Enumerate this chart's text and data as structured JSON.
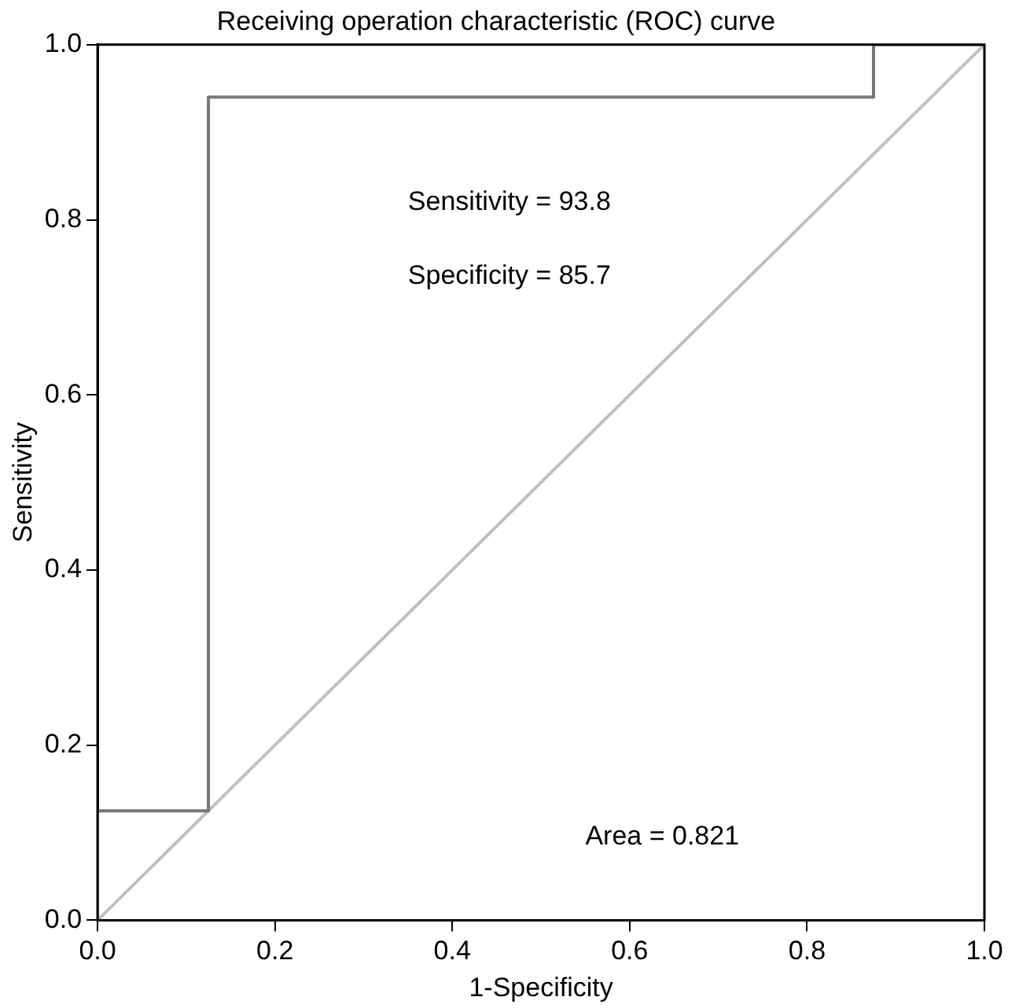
{
  "chart_data": {
    "type": "line",
    "title": "Receiving operation characteristic (ROC) curve",
    "xlabel": "1-Specificity",
    "ylabel": "Sensitivity",
    "series": [
      {
        "color": "#777777",
        "x": [
          0,
          0,
          0.125,
          0.125,
          0.875,
          0.875,
          1
        ],
        "values": [
          0,
          0.125,
          0.125,
          0.94,
          0.94,
          1,
          1
        ]
      },
      {
        "color": "#c0c0c0",
        "x": [
          0,
          1
        ],
        "values": [
          0,
          1
        ]
      }
    ],
    "xlim": [
      0,
      1
    ],
    "ylim": [
      0,
      1
    ],
    "xticks": [
      {
        "value": 0,
        "label": "0.0"
      },
      {
        "value": 0.2,
        "label": "0.2"
      },
      {
        "value": 0.4,
        "label": "0.4"
      },
      {
        "value": 0.6,
        "label": "0.6"
      },
      {
        "value": 0.8,
        "label": "0.8"
      },
      {
        "value": 1,
        "label": "1.0"
      }
    ],
    "yticks": [
      {
        "value": 0,
        "label": "0.0"
      },
      {
        "value": 0.2,
        "label": "0.2"
      },
      {
        "value": 0.4,
        "label": "0.4"
      },
      {
        "value": 0.6,
        "label": "0.6"
      },
      {
        "value": 0.8,
        "label": "0.8"
      },
      {
        "value": 1,
        "label": "1.0"
      }
    ],
    "annotations": [
      "Sensitivity = 93.8",
      "Specificity = 85.7",
      "Area = 0.821"
    ],
    "grid": false,
    "legend": false,
    "marker": "none",
    "line_style": "solid"
  }
}
